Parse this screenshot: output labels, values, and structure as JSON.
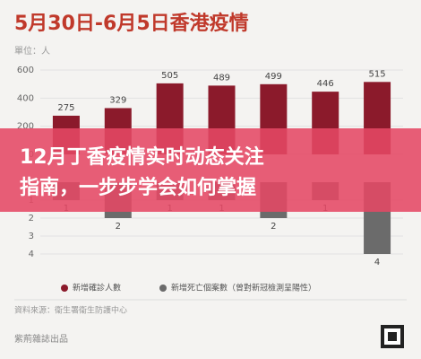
{
  "chart_data": {
    "type": "bar",
    "title": "5月30日-6月5日香港疫情",
    "y_label": "單位：人",
    "categories": [
      null,
      null,
      null,
      null,
      null,
      null,
      null
    ],
    "series": [
      {
        "name": "新增確診人數",
        "color": "#8b1a2b",
        "values": [
          275,
          329,
          505,
          489,
          499,
          446,
          515
        ]
      },
      {
        "name": "新增死亡個案數（曾對新冠檢測呈陽性）",
        "color": "#6b6b6b",
        "axis": "y2",
        "values": [
          1,
          2,
          1,
          1,
          2,
          1,
          4
        ]
      }
    ],
    "ylim": [
      0,
      600
    ],
    "yticks": [
      0,
      200,
      400,
      600
    ],
    "y2lim": [
      0,
      4
    ],
    "y2ticks": [
      1,
      2,
      3,
      4
    ],
    "source": "資料來源：衞生署衞生防護中心",
    "credit": "紫荊雜誌出品"
  },
  "banner": {
    "lines": [
      "12月丁香疫情实时动态关注",
      "指南，一步步学会如何掌握"
    ]
  }
}
